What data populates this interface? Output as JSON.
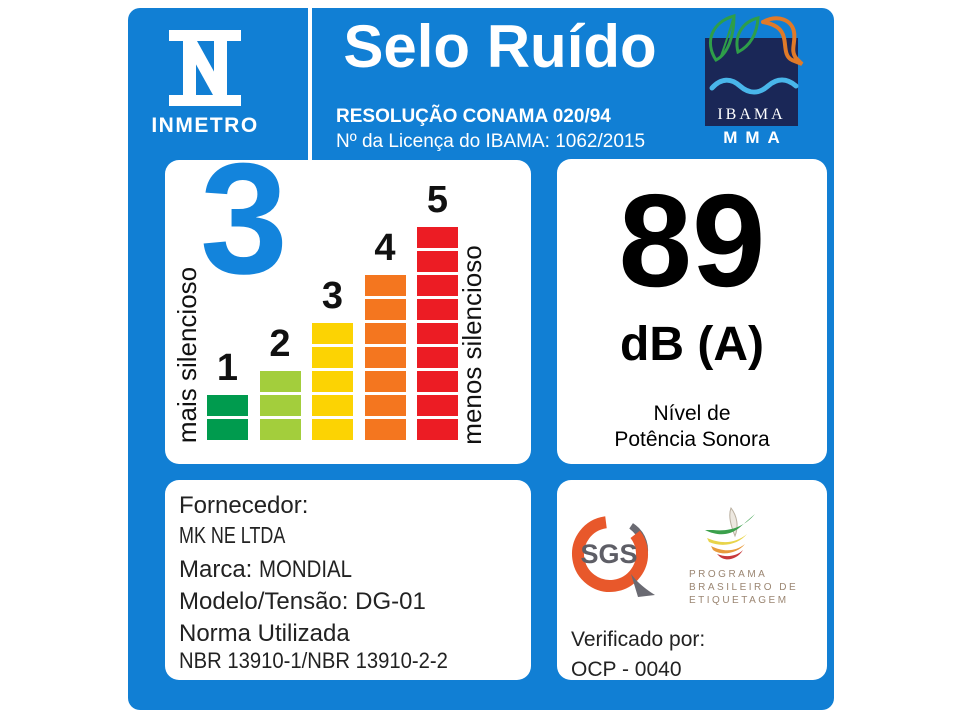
{
  "header": {
    "inmetro_label": "INMETRO",
    "title": "Selo Ruído",
    "resolution": "RESOLUÇÃO CONAMA 020/94",
    "license": "Nº da Licença do IBAMA: 1062/2015",
    "ibama_label": "IBAMA",
    "mma_label": "MMA"
  },
  "chart_data": {
    "type": "bar",
    "title": "Selo Ruído - escala de nível de ruído",
    "categories": [
      "1",
      "2",
      "3",
      "4",
      "5"
    ],
    "values": [
      2,
      3,
      5,
      7,
      9
    ],
    "segment_counts": [
      2,
      3,
      5,
      7,
      9
    ],
    "colors": [
      "#009B4E",
      "#A3CE3C",
      "#FCD303",
      "#F4761F",
      "#EC1C24"
    ],
    "selected_level": "3",
    "left_axis_label": "mais silencioso",
    "right_axis_label": "menos silencioso",
    "legend_position": "none",
    "grid": false
  },
  "result": {
    "value": "89",
    "unit": "dB (A)",
    "caption_line1": "Nível de",
    "caption_line2": "Potência Sonora"
  },
  "supplier": {
    "label": "Fornecedor:",
    "name": "MK NE LTDA",
    "brand_label": "Marca:",
    "brand": "MONDIAL",
    "model_label": "Modelo/Tensão:",
    "model": "DG-01",
    "norm_label": "Norma Utilizada",
    "norm": "NBR 13910-1/NBR 13910-2-2"
  },
  "verification": {
    "sgs_label": "SGS",
    "pbe_line1": "PROGRAMA",
    "pbe_line2": "BRASILEIRO DE",
    "pbe_line3": "ETIQUETAGEM",
    "verified_label": "Verificado por:",
    "verified_value": "OCP - 0040"
  },
  "palette": {
    "label_blue": "#117FD4",
    "selected_level_blue": "#1384DC",
    "ibama_navy": "#1A2757",
    "leaf_green": "#2E9E49",
    "bird_orange": "#E07A28",
    "wave_blue": "#49B6EA",
    "sgs_orange": "#E8582B",
    "sgs_gray": "#6A6A72",
    "pbe_text_brown": "#9B8672"
  }
}
